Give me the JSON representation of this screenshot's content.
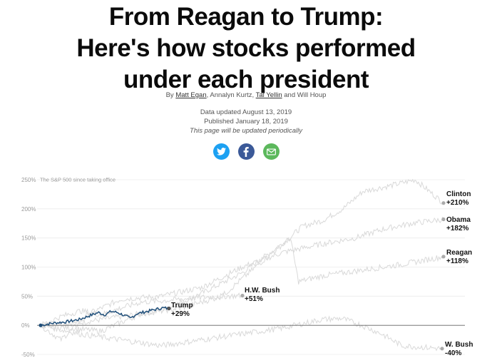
{
  "header": {
    "title_lines": [
      "From Reagan to Trump:",
      "Here's how stocks performed",
      "under each president"
    ]
  },
  "byline": {
    "prefix": "By ",
    "author1": "Matt Egan",
    "sep1": ", Annalyn Kurtz, ",
    "author2": "Tal Yellin",
    "suffix": " and Will Houp"
  },
  "meta": {
    "updated": "Data updated August 13, 2019",
    "published": "Published January 18, 2019",
    "note": "This page will be updated periodically"
  },
  "share": [
    {
      "icon": "twitter-icon",
      "color": "#1da1f2"
    },
    {
      "icon": "facebook-icon",
      "color": "#3b5998"
    },
    {
      "icon": "email-icon",
      "color": "#5cb85c"
    }
  ],
  "chart_data": {
    "type": "line",
    "subtitle": "The S&P 500 since taking office",
    "yticks": [
      "250%",
      "200%",
      "150%",
      "100%",
      "50%",
      "0%",
      "-50%"
    ],
    "ylim": [
      -50,
      250
    ],
    "series": [
      {
        "name": "Trump",
        "change": "+29%",
        "final": 29,
        "highlight": true,
        "points": [
          [
            0,
            0
          ],
          [
            0.1,
            4
          ],
          [
            0.2,
            6
          ],
          [
            0.3,
            10
          ],
          [
            0.4,
            18
          ],
          [
            0.45,
            22
          ],
          [
            0.5,
            18
          ],
          [
            0.55,
            24
          ],
          [
            0.6,
            22
          ],
          [
            0.7,
            12
          ],
          [
            0.75,
            20
          ],
          [
            0.85,
            25
          ],
          [
            0.95,
            30
          ],
          [
            1,
            29
          ]
        ]
      },
      {
        "name": "Clinton",
        "change": "+210%",
        "final": 210,
        "points": [
          [
            0,
            0
          ],
          [
            0.1,
            5
          ],
          [
            0.2,
            15
          ],
          [
            0.3,
            25
          ],
          [
            0.4,
            55
          ],
          [
            0.5,
            90
          ],
          [
            0.6,
            140
          ],
          [
            0.65,
            170
          ],
          [
            0.7,
            180
          ],
          [
            0.75,
            200
          ],
          [
            0.8,
            230
          ],
          [
            0.87,
            240
          ],
          [
            0.93,
            250
          ],
          [
            1,
            210
          ]
        ]
      },
      {
        "name": "Obama",
        "change": "+182%",
        "final": 182,
        "points": [
          [
            0,
            0
          ],
          [
            0.05,
            -25
          ],
          [
            0.12,
            20
          ],
          [
            0.2,
            45
          ],
          [
            0.3,
            50
          ],
          [
            0.4,
            65
          ],
          [
            0.5,
            100
          ],
          [
            0.6,
            125
          ],
          [
            0.7,
            140
          ],
          [
            0.78,
            150
          ],
          [
            0.85,
            165
          ],
          [
            0.92,
            175
          ],
          [
            1,
            182
          ]
        ]
      },
      {
        "name": "Reagan",
        "change": "+118%",
        "final": 118,
        "points": [
          [
            0,
            0
          ],
          [
            0.15,
            -10
          ],
          [
            0.25,
            20
          ],
          [
            0.35,
            30
          ],
          [
            0.45,
            50
          ],
          [
            0.55,
            110
          ],
          [
            0.62,
            150
          ],
          [
            0.64,
            75
          ],
          [
            0.7,
            85
          ],
          [
            0.8,
            95
          ],
          [
            0.9,
            105
          ],
          [
            1,
            118
          ]
        ]
      },
      {
        "name": "H.W. Bush",
        "change": "+51%",
        "final": 51,
        "points": [
          [
            0,
            0
          ],
          [
            0.1,
            15
          ],
          [
            0.2,
            25
          ],
          [
            0.3,
            18
          ],
          [
            0.4,
            30
          ],
          [
            0.5,
            40
          ],
          [
            0.6,
            42
          ],
          [
            0.7,
            45
          ],
          [
            0.8,
            48
          ],
          [
            0.9,
            50
          ],
          [
            1,
            51
          ]
        ]
      },
      {
        "name": "W. Bush",
        "change": "-40%",
        "final": -40,
        "points": [
          [
            0,
            0
          ],
          [
            0.1,
            -15
          ],
          [
            0.2,
            -25
          ],
          [
            0.3,
            -35
          ],
          [
            0.4,
            -25
          ],
          [
            0.5,
            -15
          ],
          [
            0.6,
            -5
          ],
          [
            0.7,
            10
          ],
          [
            0.75,
            12
          ],
          [
            0.8,
            0
          ],
          [
            0.85,
            -15
          ],
          [
            0.9,
            -35
          ],
          [
            1,
            -40
          ]
        ]
      }
    ]
  }
}
